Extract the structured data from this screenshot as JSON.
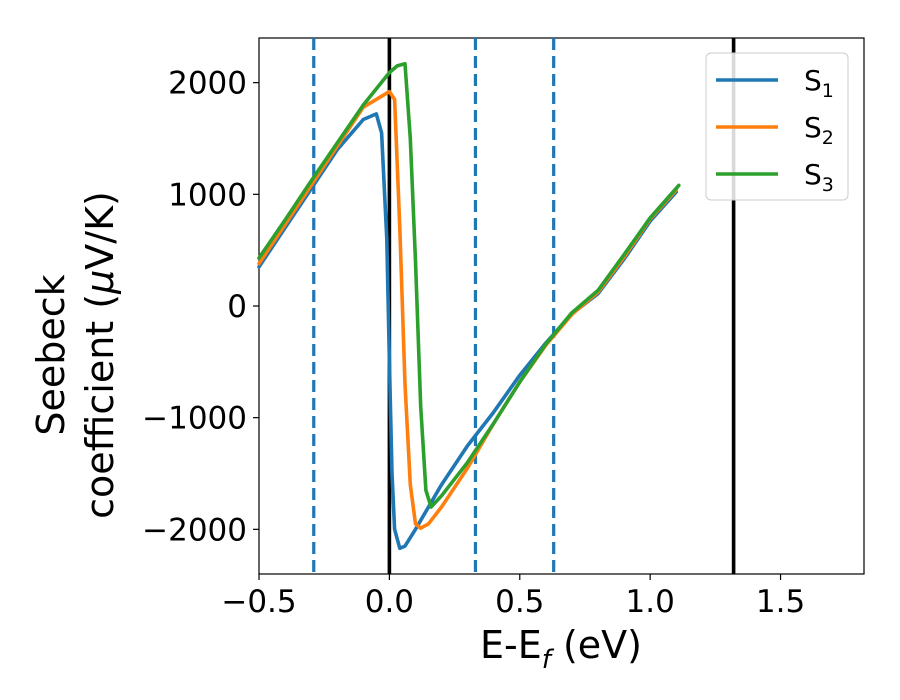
{
  "chart_data": {
    "type": "line",
    "xlabel": {
      "base": "E-E",
      "sub": "f",
      "suffix": " (eV)"
    },
    "ylabel": {
      "line1": "Seebeck",
      "line2_pre": "coefficient  (",
      "mu": "μ",
      "line2_post": "V/K)"
    },
    "xlim": [
      -0.5,
      1.82
    ],
    "ylim": [
      -2400,
      2400
    ],
    "xticks": [
      -0.5,
      0.0,
      0.5,
      1.0,
      1.5
    ],
    "xtick_labels": [
      "−0.5",
      "0.0",
      "0.5",
      "1.0",
      "1.5"
    ],
    "yticks": [
      -2000,
      -1000,
      0,
      1000,
      2000
    ],
    "ytick_labels": [
      "−2000",
      "−1000",
      "0",
      "1000",
      "2000"
    ],
    "legend_position": "top-right",
    "vlines": [
      {
        "x": -0.29,
        "style": "dashed",
        "color": "#1f77b4"
      },
      {
        "x": 0.0,
        "style": "solid",
        "color": "#000000"
      },
      {
        "x": 0.33,
        "style": "dashed",
        "color": "#1f77b4"
      },
      {
        "x": 0.63,
        "style": "dashed",
        "color": "#1f77b4"
      },
      {
        "x": 1.32,
        "style": "solid",
        "color": "#000000"
      }
    ],
    "series": [
      {
        "name": "S",
        "sub": "1",
        "color": "#1f77b4",
        "x": [
          -0.5,
          -0.4,
          -0.3,
          -0.2,
          -0.1,
          -0.05,
          -0.03,
          -0.01,
          0.0,
          0.01,
          0.02,
          0.04,
          0.06,
          0.1,
          0.2,
          0.3,
          0.4,
          0.5,
          0.6,
          0.7,
          0.8,
          0.9,
          1.0,
          1.1
        ],
        "values": [
          350,
          700,
          1050,
          1400,
          1670,
          1720,
          1550,
          600,
          -500,
          -1500,
          -2000,
          -2170,
          -2150,
          -2000,
          -1600,
          -1250,
          -950,
          -620,
          -330,
          -70,
          110,
          420,
          760,
          1020
        ]
      },
      {
        "name": "S",
        "sub": "2",
        "color": "#ff7f0e",
        "x": [
          -0.5,
          -0.4,
          -0.3,
          -0.2,
          -0.1,
          0.0,
          0.02,
          0.04,
          0.06,
          0.08,
          0.1,
          0.12,
          0.15,
          0.2,
          0.3,
          0.4,
          0.5,
          0.6,
          0.7,
          0.8,
          0.9,
          1.0,
          1.1
        ],
        "values": [
          380,
          730,
          1080,
          1430,
          1780,
          1920,
          1850,
          700,
          -700,
          -1600,
          -1950,
          -1990,
          -1950,
          -1800,
          -1450,
          -1050,
          -680,
          -350,
          -75,
          125,
          440,
          780,
          1040
        ]
      },
      {
        "name": "S",
        "sub": "3",
        "color": "#2ca02c",
        "x": [
          -0.5,
          -0.4,
          -0.3,
          -0.2,
          -0.1,
          0.0,
          0.03,
          0.06,
          0.08,
          0.1,
          0.12,
          0.14,
          0.16,
          0.2,
          0.3,
          0.4,
          0.5,
          0.6,
          0.7,
          0.8,
          0.9,
          1.0,
          1.11
        ],
        "values": [
          430,
          770,
          1120,
          1460,
          1800,
          2090,
          2150,
          2170,
          1500,
          400,
          -900,
          -1650,
          -1800,
          -1700,
          -1400,
          -1050,
          -680,
          -340,
          -60,
          140,
          460,
          790,
          1080
        ]
      }
    ]
  }
}
